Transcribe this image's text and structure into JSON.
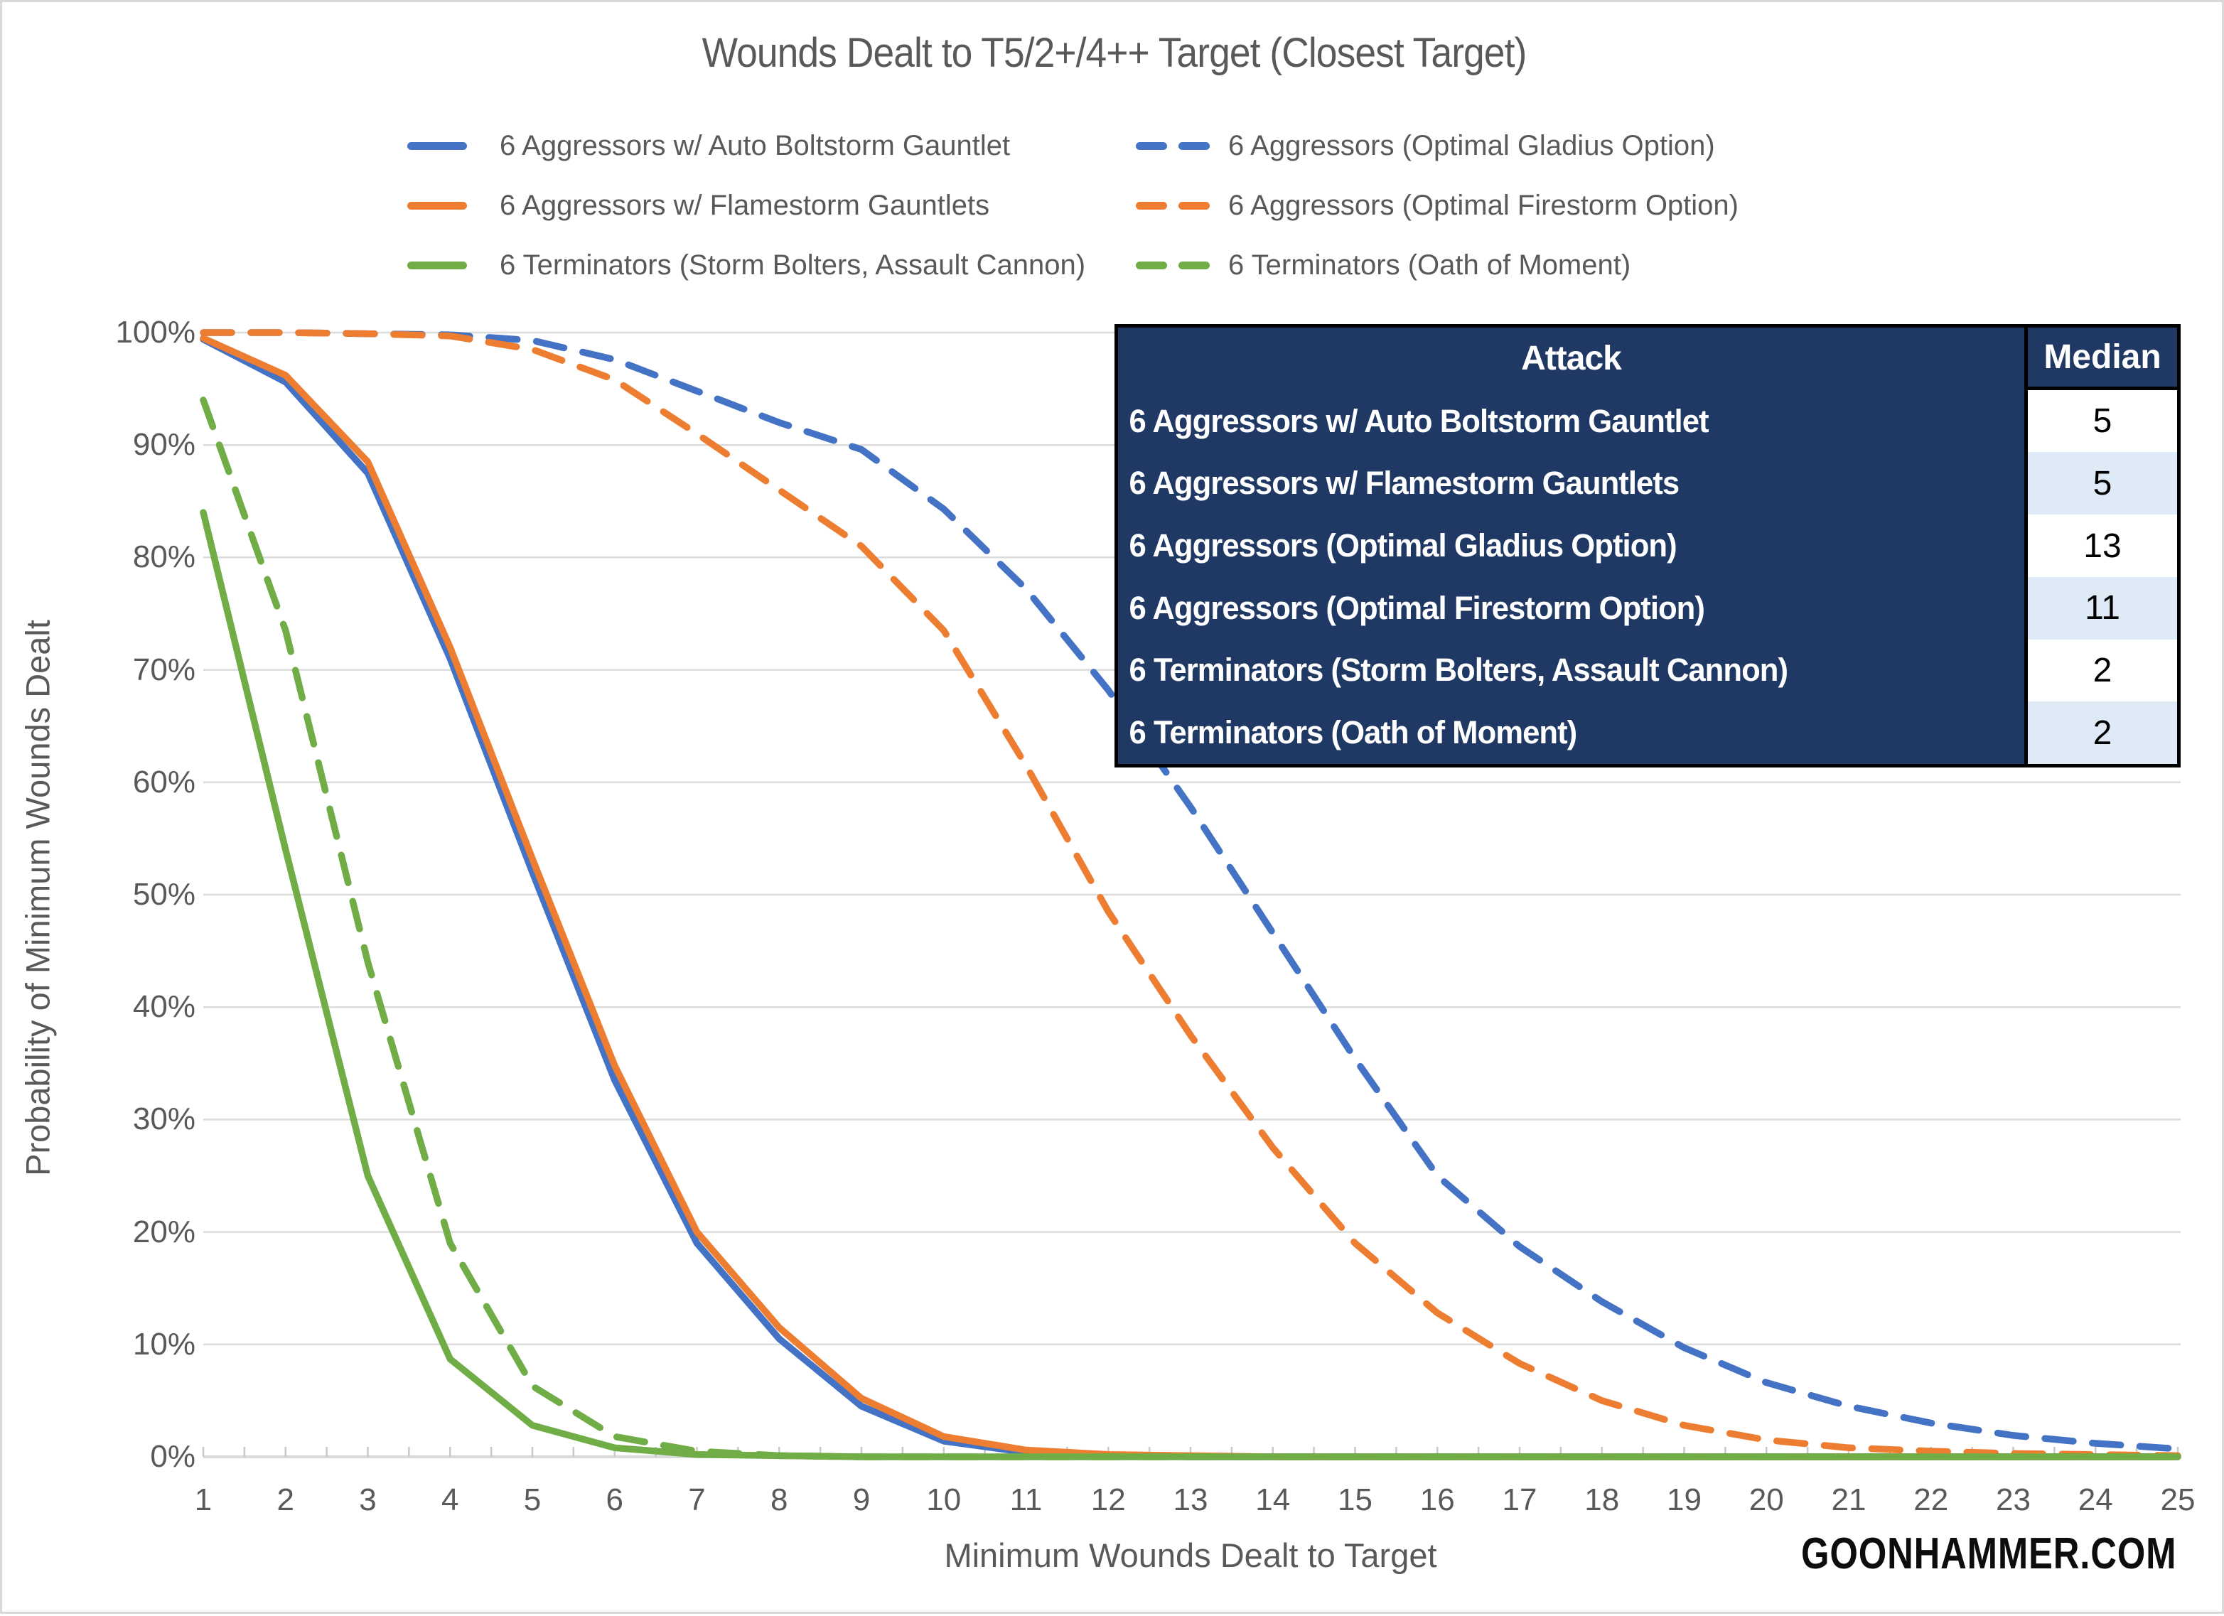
{
  "title": "Wounds Dealt to T5/2+/4++ Target (Closest Target)",
  "footer": {
    "brand": "GOONHAMMER.COM"
  },
  "colors": {
    "blue": "#4472C4",
    "orange": "#ED7D31",
    "green": "#70AD47",
    "text_gray": "#595959",
    "gridline": "#DCDCDC",
    "axis_line": "#D9D9D9",
    "table_navy": "#1F3864",
    "table_alt_blue": "#DEEAF6",
    "table_white": "#FFFFFF"
  },
  "table": {
    "headers": [
      "Attack",
      "Median"
    ],
    "rows": [
      {
        "attack": "6 Aggressors w/ Auto Boltstorm Gauntlet",
        "median": "5"
      },
      {
        "attack": "6 Aggressors w/ Flamestorm Gauntlets",
        "median": "5"
      },
      {
        "attack": "6 Aggressors (Optimal Gladius Option)",
        "median": "13"
      },
      {
        "attack": "6 Aggressors (Optimal Firestorm Option)",
        "median": "11"
      },
      {
        "attack": "6 Terminators (Storm Bolters, Assault Cannon)",
        "median": "2"
      },
      {
        "attack": "6 Terminators (Oath of Moment)",
        "median": "2"
      }
    ]
  },
  "legend": {
    "column1_series": [
      0,
      1,
      4
    ],
    "column2_series": [
      2,
      3,
      5
    ]
  },
  "chart_data": {
    "type": "line",
    "title": "Wounds Dealt to T5/2+/4++ Target (Closest Target)",
    "xlabel": "Minimum Wounds Dealt to Target",
    "ylabel": "Probability of Minimum Wounds Dealt",
    "x": [
      1,
      2,
      3,
      4,
      5,
      6,
      7,
      8,
      9,
      10,
      11,
      12,
      13,
      14,
      15,
      16,
      17,
      18,
      19,
      20,
      21,
      22,
      23,
      24,
      25
    ],
    "xlim": [
      1,
      25
    ],
    "ylim": [
      0,
      100
    ],
    "ytick_step": 10,
    "ytick_format": "percent",
    "grid": "horizontal",
    "legend_position": "top-two-columns",
    "series": [
      {
        "name": "6 Aggressors w/ Auto Boltstorm Gauntlet",
        "color": "#4472C4",
        "line_style": "solid",
        "values": [
          99.4,
          95.6,
          87.5,
          71,
          52,
          33.5,
          19,
          10.5,
          4.5,
          1.4,
          0.4,
          0.1,
          0,
          0,
          0,
          0,
          0,
          0,
          0,
          0,
          0,
          0,
          0,
          0,
          0
        ]
      },
      {
        "name": "6 Aggressors w/ Flamestorm Gauntlets",
        "color": "#ED7D31",
        "line_style": "solid",
        "values": [
          99.5,
          96.2,
          88.5,
          72,
          53.2,
          34.8,
          20,
          11.5,
          5.2,
          1.8,
          0.6,
          0.2,
          0.1,
          0,
          0,
          0,
          0,
          0,
          0,
          0,
          0,
          0,
          0,
          0,
          0
        ]
      },
      {
        "name": "6 Aggressors (Optimal Gladius Option)",
        "color": "#4472C4",
        "line_style": "dashed",
        "values": [
          100,
          100,
          99.9,
          99.8,
          99.3,
          97.6,
          94.8,
          92,
          89.6,
          84.3,
          77.2,
          68.2,
          57.8,
          46.6,
          35.4,
          25,
          18.7,
          13.8,
          9.7,
          6.6,
          4.5,
          3,
          1.9,
          1.2,
          0.7
        ]
      },
      {
        "name": "6 Aggressors (Optimal Firestorm Option)",
        "color": "#ED7D31",
        "line_style": "dashed",
        "values": [
          100,
          100,
          99.9,
          99.7,
          98.5,
          95.8,
          91,
          86,
          81,
          73.5,
          61.5,
          48.5,
          37.5,
          27.5,
          19,
          12.8,
          8.3,
          5,
          2.8,
          1.5,
          0.8,
          0.5,
          0.3,
          0.2,
          0.1
        ]
      },
      {
        "name": "6 Terminators (Storm Bolters, Assault Cannon)",
        "color": "#70AD47",
        "line_style": "solid",
        "values": [
          84,
          54,
          25,
          8.7,
          2.8,
          0.8,
          0.2,
          0.1,
          0,
          0,
          0,
          0,
          0,
          0,
          0,
          0,
          0,
          0,
          0,
          0,
          0,
          0,
          0,
          0,
          0
        ]
      },
      {
        "name": "6 Terminators (Oath of Moment)",
        "color": "#70AD47",
        "line_style": "dashed",
        "values": [
          94,
          73.5,
          44,
          19,
          6.3,
          1.8,
          0.5,
          0.1,
          0,
          0,
          0,
          0,
          0,
          0,
          0,
          0,
          0,
          0,
          0,
          0,
          0,
          0,
          0,
          0,
          0
        ]
      }
    ]
  }
}
